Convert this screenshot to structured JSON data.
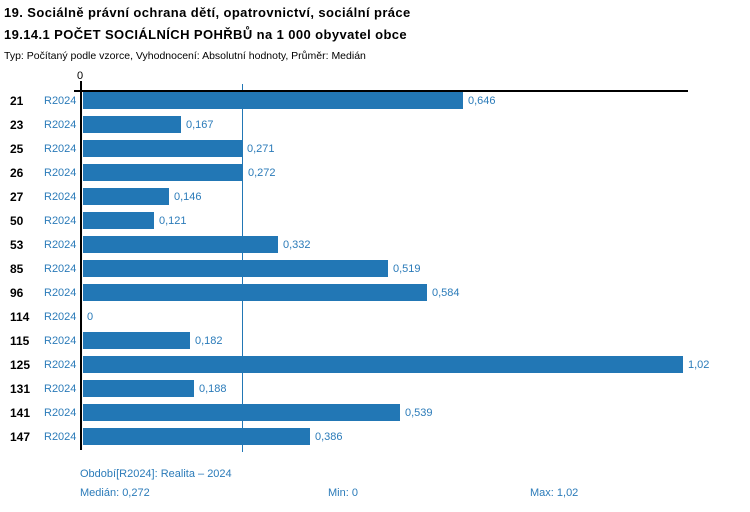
{
  "header": {
    "title_line1": "19. Sociálně právní ochrana dětí, opatrovnictví, sociální práce",
    "title_line2": "19.14.1 POČET SOCIÁLNÍCH POHŘBŮ na 1 000 obyvatel obce",
    "subtitle": "Typ: Počítaný podle vzorce, Vyhodnocení: Absolutní hodnoty, Průměr: Medián"
  },
  "chart_data": {
    "type": "bar",
    "orientation": "horizontal",
    "title": "19.14.1 POČET SOCIÁLNÍCH POHŘBŮ na 1 000 obyvatel obce",
    "categories": [
      "21",
      "23",
      "25",
      "26",
      "27",
      "50",
      "53",
      "85",
      "96",
      "114",
      "115",
      "125",
      "131",
      "141",
      "147"
    ],
    "row_series_label": "R2024",
    "series": [
      {
        "name": "R2024",
        "values": [
          0.646,
          0.167,
          0.271,
          0.272,
          0.146,
          0.121,
          0.332,
          0.519,
          0.584,
          0,
          0.182,
          1.02,
          0.188,
          0.539,
          0.386
        ]
      }
    ],
    "value_labels": [
      "0,646",
      "0,167",
      "0,271",
      "0,272",
      "0,146",
      "0,121",
      "0,332",
      "0,519",
      "0,584",
      "0",
      "0,182",
      "1,02",
      "0,188",
      "0,539",
      "0,386"
    ],
    "xlim": [
      0,
      1.02
    ],
    "x_tick_labels": [
      "0"
    ],
    "x_tick_zero": "0",
    "reference_line": {
      "value": 0.272,
      "meaning": "median"
    },
    "grid": false,
    "legend_position": "none",
    "bar_color": "#2277b5",
    "label_color": "#2b7bb9",
    "axis_color": "#000000"
  },
  "footer": {
    "period": "Období[R2024]: Realita – 2024",
    "median": "Medián: 0,272",
    "min": "Min: 0",
    "max": "Max: 1,02"
  }
}
